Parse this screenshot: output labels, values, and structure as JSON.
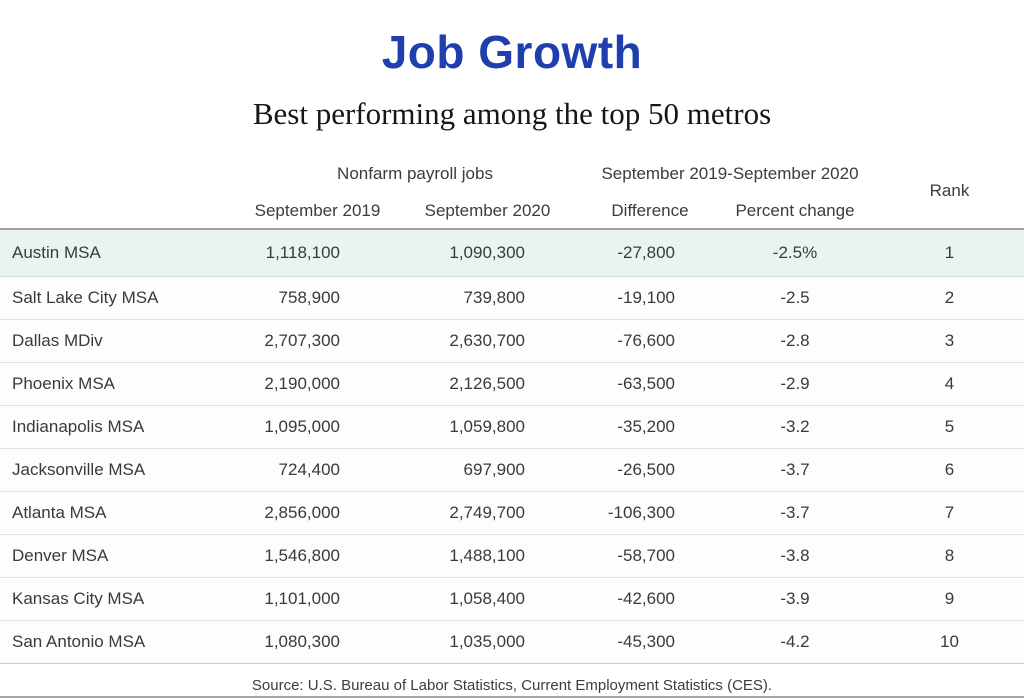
{
  "page": {
    "title": "Job Growth",
    "subtitle": "Best performing among the top 50 metros",
    "source": "Source: U.S. Bureau of Labor Statistics, Current Employment Statistics (CES)."
  },
  "colors": {
    "title_blue": "#1e3fad",
    "highlight_row_bg": "#e9f4f1",
    "row_separator": "#e2e2e2",
    "header_rule": "#a0a0a0"
  },
  "table": {
    "group_headers": [
      {
        "label": "Nonfarm payroll jobs",
        "spans": [
          "September 2019",
          "September 2020"
        ]
      },
      {
        "label": "September 2019-September 2020",
        "spans": [
          "Difference",
          "Percent change"
        ]
      }
    ],
    "column_headers": [
      "",
      "September 2019",
      "September 2020",
      "Difference",
      "Percent change",
      "Rank"
    ],
    "highlighted_row_index": 0,
    "rows": [
      [
        "Austin MSA",
        "1,118,100",
        "1,090,300",
        "-27,800",
        "-2.5%",
        "1"
      ],
      [
        "Salt Lake City MSA",
        "758,900",
        "739,800",
        "-19,100",
        "-2.5",
        "2"
      ],
      [
        "Dallas MDiv",
        "2,707,300",
        "2,630,700",
        "-76,600",
        "-2.8",
        "3"
      ],
      [
        "Phoenix MSA",
        "2,190,000",
        "2,126,500",
        "-63,500",
        "-2.9",
        "4"
      ],
      [
        "Indianapolis MSA",
        "1,095,000",
        "1,059,800",
        "-35,200",
        "-3.2",
        "5"
      ],
      [
        "Jacksonville MSA",
        "724,400",
        "697,900",
        "-26,500",
        "-3.7",
        "6"
      ],
      [
        "Atlanta MSA",
        "2,856,000",
        "2,749,700",
        "-106,300",
        "-3.7",
        "7"
      ],
      [
        "Denver MSA",
        "1,546,800",
        "1,488,100",
        "-58,700",
        "-3.8",
        "8"
      ],
      [
        "Kansas City MSA",
        "1,101,000",
        "1,058,400",
        "-42,600",
        "-3.9",
        "9"
      ],
      [
        "San Antonio MSA",
        "1,080,300",
        "1,035,000",
        "-45,300",
        "-4.2",
        "10"
      ]
    ]
  }
}
